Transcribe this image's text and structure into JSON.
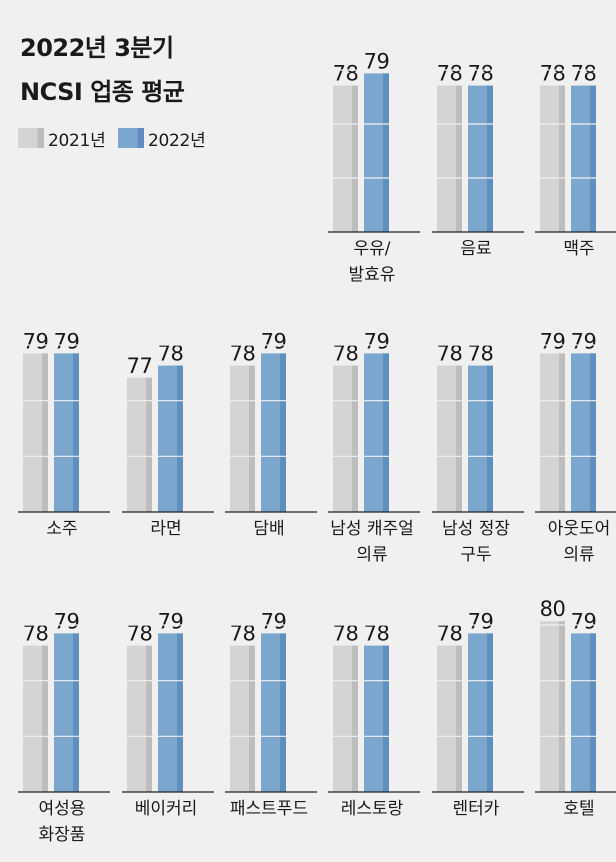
{
  "title_line1": "2022년 3분기",
  "title_line2": "NCSI 업종 평균",
  "legend": {
    "items": [
      {
        "label": "2021년",
        "color": "#d4d4d4",
        "shade": "#bdbdbd"
      },
      {
        "label": "2022년",
        "color": "#7ba7cf",
        "shade": "#5f8fbf"
      }
    ]
  },
  "chart_data": {
    "type": "bar",
    "title": "2022년 3분기 NCSI 업종 평균",
    "series": [
      {
        "name": "2021년"
      },
      {
        "name": "2022년"
      }
    ],
    "categories": [
      {
        "label": [
          "우유/",
          "발효유"
        ],
        "values": [
          78,
          79
        ]
      },
      {
        "label": [
          "음료"
        ],
        "values": [
          78,
          78
        ]
      },
      {
        "label": [
          "맥주"
        ],
        "values": [
          78,
          78
        ]
      },
      {
        "label": [
          "소주"
        ],
        "values": [
          79,
          79
        ]
      },
      {
        "label": [
          "라면"
        ],
        "values": [
          77,
          78
        ]
      },
      {
        "label": [
          "담배"
        ],
        "values": [
          78,
          79
        ]
      },
      {
        "label": [
          "남성 캐주얼",
          "의류"
        ],
        "values": [
          78,
          79
        ]
      },
      {
        "label": [
          "남성 정장",
          "구두"
        ],
        "values": [
          78,
          78
        ]
      },
      {
        "label": [
          "아웃도어",
          "의류"
        ],
        "values": [
          79,
          79
        ]
      },
      {
        "label": [
          "여성용",
          "화장품"
        ],
        "values": [
          78,
          79
        ]
      },
      {
        "label": [
          "베이커리"
        ],
        "values": [
          78,
          79
        ]
      },
      {
        "label": [
          "패스트푸드"
        ],
        "values": [
          78,
          79
        ]
      },
      {
        "label": [
          "레스토랑"
        ],
        "values": [
          78,
          78
        ]
      },
      {
        "label": [
          "렌터카"
        ],
        "values": [
          78,
          79
        ]
      },
      {
        "label": [
          "호텔"
        ],
        "values": [
          80,
          79
        ]
      }
    ]
  }
}
